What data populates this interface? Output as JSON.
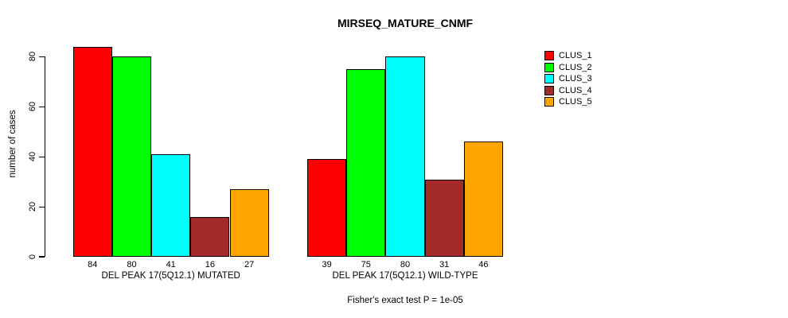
{
  "chart_data": {
    "type": "bar",
    "title": "MIRSEQ_MATURE_CNMF",
    "ylabel": "number of cases",
    "xlabel": "",
    "ylim": [
      0,
      84
    ],
    "yticks": [
      0,
      20,
      40,
      60,
      80
    ],
    "grid": false,
    "legend_position": "right",
    "bar_value_labels_shown": true,
    "categories": [
      "DEL PEAK 17(5Q12.1) MUTATED",
      "DEL PEAK 17(5Q12.1) WILD-TYPE"
    ],
    "series": [
      {
        "name": "CLUS_1",
        "color": "#FF0000",
        "values": [
          84,
          39
        ]
      },
      {
        "name": "CLUS_2",
        "color": "#00FF00",
        "values": [
          80,
          75
        ]
      },
      {
        "name": "CLUS_3",
        "color": "#00FFFF",
        "values": [
          41,
          80
        ]
      },
      {
        "name": "CLUS_4",
        "color": "#A52A2A",
        "values": [
          16,
          31
        ]
      },
      {
        "name": "CLUS_5",
        "color": "#FFA500",
        "values": [
          27,
          46
        ]
      }
    ],
    "annotation": "Fisher's exact test P = 1e-05"
  }
}
